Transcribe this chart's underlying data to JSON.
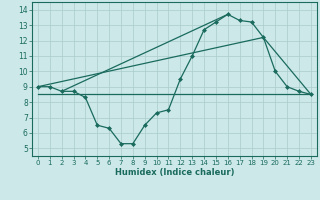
{
  "line1_x": [
    0,
    1,
    2,
    3,
    4,
    5,
    6,
    7,
    8,
    9,
    10,
    11,
    12,
    13,
    14,
    15,
    16,
    17,
    18,
    19,
    20,
    21,
    22,
    23
  ],
  "line1_y": [
    9.0,
    9.0,
    8.7,
    8.7,
    8.3,
    6.5,
    6.3,
    5.3,
    5.3,
    6.5,
    7.3,
    7.5,
    9.5,
    11.0,
    12.7,
    13.2,
    13.7,
    13.3,
    13.2,
    12.2,
    10.0,
    9.0,
    8.7,
    8.5
  ],
  "line2_x": [
    0,
    23
  ],
  "line2_y": [
    8.5,
    8.5
  ],
  "line3_x": [
    0,
    19,
    23
  ],
  "line3_y": [
    9.0,
    12.2,
    8.5
  ],
  "line4_x": [
    2,
    16
  ],
  "line4_y": [
    8.7,
    13.7
  ],
  "color": "#1a6b5e",
  "bg_color": "#cce8e8",
  "grid_color": "#aacccc",
  "xlabel": "Humidex (Indice chaleur)",
  "xlim": [
    -0.5,
    23.5
  ],
  "ylim": [
    4.5,
    14.5
  ],
  "xticks": [
    0,
    1,
    2,
    3,
    4,
    5,
    6,
    7,
    8,
    9,
    10,
    11,
    12,
    13,
    14,
    15,
    16,
    17,
    18,
    19,
    20,
    21,
    22,
    23
  ],
  "yticks": [
    5,
    6,
    7,
    8,
    9,
    10,
    11,
    12,
    13,
    14
  ],
  "marker": "D",
  "markersize": 2,
  "linewidth": 0.9
}
